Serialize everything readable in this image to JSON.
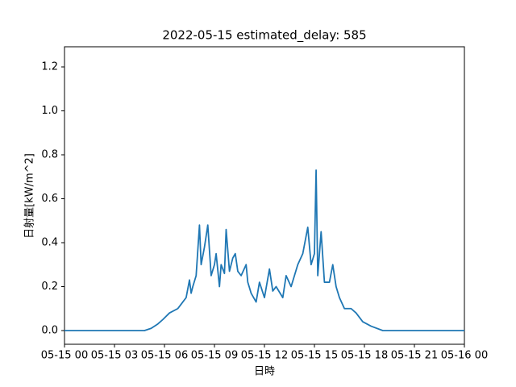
{
  "chart_data": {
    "type": "line",
    "title": "2022-05-15 estimated_delay: 585",
    "xlabel": "日時",
    "ylabel": "日射量[kW/m^2]",
    "color": "#1f77b4",
    "x": [
      0,
      1,
      2,
      3,
      4,
      4.8,
      5.2,
      5.6,
      5.9,
      6.3,
      6.8,
      7.0,
      7.3,
      7.5,
      7.6,
      7.7,
      7.9,
      8.1,
      8.2,
      8.4,
      8.6,
      8.8,
      9.0,
      9.1,
      9.3,
      9.4,
      9.6,
      9.7,
      9.9,
      10.1,
      10.25,
      10.4,
      10.6,
      10.9,
      11.0,
      11.2,
      11.5,
      11.7,
      12.0,
      12.3,
      12.5,
      12.7,
      13.1,
      13.3,
      13.6,
      14.0,
      14.3,
      14.6,
      14.8,
      15.0,
      15.1,
      15.2,
      15.4,
      15.6,
      15.9,
      16.1,
      16.3,
      16.5,
      16.8,
      17.2,
      17.5,
      17.9,
      18.4,
      19.1,
      20,
      21,
      22,
      23,
      24
    ],
    "values": [
      0.0,
      0.0,
      0.0,
      0.0,
      0.0,
      0.0,
      0.01,
      0.03,
      0.05,
      0.08,
      0.1,
      0.12,
      0.15,
      0.23,
      0.17,
      0.2,
      0.25,
      0.48,
      0.3,
      0.38,
      0.48,
      0.25,
      0.3,
      0.35,
      0.2,
      0.3,
      0.26,
      0.46,
      0.27,
      0.33,
      0.35,
      0.27,
      0.25,
      0.3,
      0.22,
      0.17,
      0.13,
      0.22,
      0.15,
      0.28,
      0.18,
      0.2,
      0.15,
      0.25,
      0.2,
      0.3,
      0.35,
      0.47,
      0.3,
      0.35,
      0.73,
      0.25,
      0.45,
      0.22,
      0.22,
      0.3,
      0.2,
      0.15,
      0.1,
      0.1,
      0.08,
      0.04,
      0.02,
      0.0,
      0.0,
      0.0,
      0.0,
      0.0,
      0.0
    ],
    "xlim": [
      0,
      24
    ],
    "xticks": [
      {
        "value": 0,
        "label": "05-15 00"
      },
      {
        "value": 3,
        "label": "05-15 03"
      },
      {
        "value": 6,
        "label": "05-15 06"
      },
      {
        "value": 9,
        "label": "05-15 09"
      },
      {
        "value": 12,
        "label": "05-15 12"
      },
      {
        "value": 15,
        "label": "05-15 15"
      },
      {
        "value": 18,
        "label": "05-15 18"
      },
      {
        "value": 21,
        "label": "05-15 21"
      },
      {
        "value": 24,
        "label": "05-16 00"
      }
    ],
    "ylim": [
      -0.0624,
      1.2917
    ],
    "yticks": [
      {
        "value": 0,
        "label": "0.0"
      },
      0.2,
      0.4,
      0.6,
      0.8,
      {
        "value": 1,
        "label": "1.0"
      },
      1.2
    ]
  }
}
